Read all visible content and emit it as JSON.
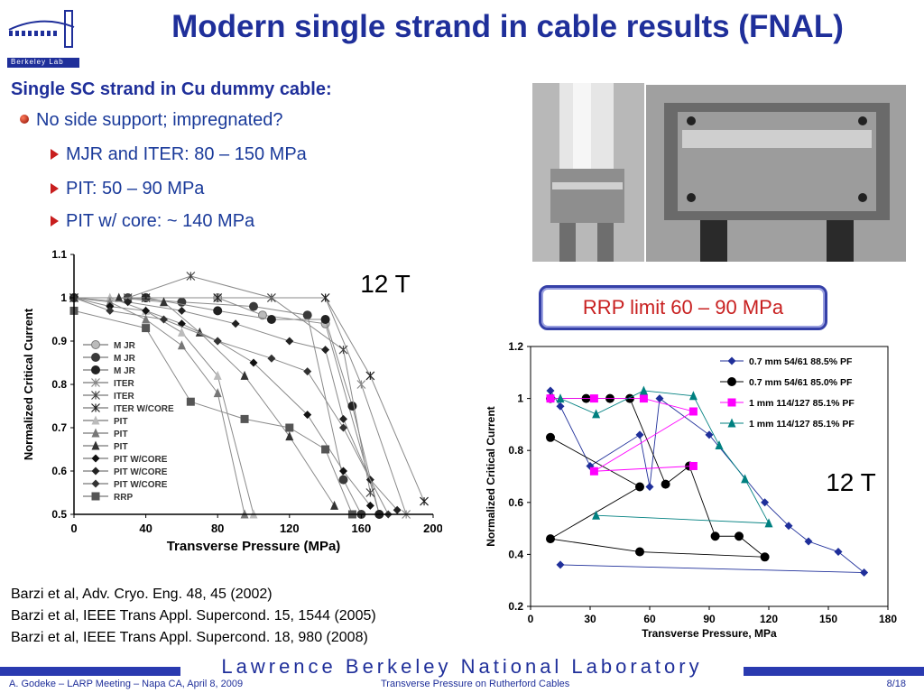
{
  "logo": {
    "label": "Berkeley Lab"
  },
  "title": "Modern single strand in cable results (FNAL)",
  "subtitle": "Single SC strand in Cu dummy cable:",
  "bullets": [
    "No side support; impregnated?",
    "MJR and ITER: 80 – 150 MPa",
    "PIT: 50 – 90 MPa",
    "PIT w/ core: ~ 140 MPa"
  ],
  "callout": "RRP limit 60 – 90 MPa",
  "references": [
    "Barzi et al, Adv. Cryo. Eng. 48, 45 (2002)",
    "Barzi et al, IEEE Trans Appl. Supercond. 15, 1544 (2005)",
    "Barzi et al, IEEE Trans Appl. Supercond. 18, 980 (2008)"
  ],
  "banner": "Lawrence Berkeley National Laboratory",
  "footer": {
    "left": "A. Godeke – LARP Meeting – Napa CA, April 8, 2009",
    "center": "Transverse Pressure on Rutherford Cables",
    "right": "8/18"
  },
  "colors": {
    "title": "#1f2f9a",
    "accent_red": "#c81e1e",
    "banner_blue": "#2a3ab0"
  },
  "chart_data": [
    {
      "type": "line",
      "annotation": "12 T",
      "xlabel": "Transverse Pressure (MPa)",
      "ylabel": "Normalized Critical Current",
      "xlim": [
        0,
        200
      ],
      "ylim": [
        0.5,
        1.1
      ],
      "xticks": [
        "0",
        "40",
        "80",
        "120",
        "160",
        "200"
      ],
      "yticks": [
        "0.5",
        "0.6",
        "0.7",
        "0.8",
        "0.9",
        "1",
        "1.1"
      ],
      "legend_position": "left",
      "series": [
        {
          "name": "M JR",
          "marker": "circle-open",
          "points": [
            [
              0,
              1
            ],
            [
              40,
              1
            ],
            [
              80,
              1
            ],
            [
              105,
              0.96
            ],
            [
              140,
              0.94
            ],
            [
              170,
              0.5
            ]
          ]
        },
        {
          "name": "M JR",
          "marker": "circle",
          "points": [
            [
              0,
              1
            ],
            [
              30,
              1
            ],
            [
              60,
              0.99
            ],
            [
              100,
              0.98
            ],
            [
              130,
              0.96
            ],
            [
              150,
              0.58
            ],
            [
              160,
              0.5
            ]
          ]
        },
        {
          "name": "M JR",
          "marker": "circle",
          "points": [
            [
              0,
              1
            ],
            [
              40,
              1
            ],
            [
              80,
              0.97
            ],
            [
              110,
              0.95
            ],
            [
              140,
              0.95
            ],
            [
              155,
              0.75
            ],
            [
              170,
              0.5
            ]
          ]
        },
        {
          "name": "ITER",
          "marker": "x",
          "points": [
            [
              0,
              1
            ],
            [
              40,
              1
            ],
            [
              80,
              1
            ],
            [
              110,
              1
            ],
            [
              140,
              1
            ],
            [
              160,
              0.8
            ],
            [
              185,
              0.5
            ]
          ]
        },
        {
          "name": "ITER",
          "marker": "x",
          "points": [
            [
              0,
              1
            ],
            [
              30,
              1
            ],
            [
              65,
              1.05
            ],
            [
              110,
              1
            ],
            [
              150,
              0.88
            ],
            [
              165,
              0.55
            ]
          ]
        },
        {
          "name": "ITER W/CORE",
          "marker": "x",
          "points": [
            [
              0,
              1
            ],
            [
              40,
              1
            ],
            [
              80,
              1
            ],
            [
              140,
              1
            ],
            [
              165,
              0.82
            ],
            [
              195,
              0.53
            ]
          ]
        },
        {
          "name": "PIT",
          "marker": "triangle-open",
          "points": [
            [
              0,
              1
            ],
            [
              20,
              1
            ],
            [
              40,
              0.97
            ],
            [
              60,
              0.92
            ],
            [
              80,
              0.82
            ],
            [
              100,
              0.5
            ]
          ]
        },
        {
          "name": "PIT",
          "marker": "triangle",
          "points": [
            [
              0,
              1
            ],
            [
              20,
              0.99
            ],
            [
              40,
              0.95
            ],
            [
              60,
              0.89
            ],
            [
              80,
              0.78
            ],
            [
              95,
              0.5
            ]
          ]
        },
        {
          "name": "PIT",
          "marker": "triangle",
          "points": [
            [
              0,
              1
            ],
            [
              25,
              1
            ],
            [
              50,
              0.99
            ],
            [
              70,
              0.92
            ],
            [
              95,
              0.82
            ],
            [
              120,
              0.68
            ],
            [
              145,
              0.52
            ]
          ]
        },
        {
          "name": "PIT W/CORE",
          "marker": "diamond",
          "points": [
            [
              0,
              1
            ],
            [
              20,
              0.98
            ],
            [
              40,
              0.97
            ],
            [
              60,
              0.94
            ],
            [
              80,
              0.9
            ],
            [
              100,
              0.85
            ],
            [
              130,
              0.73
            ],
            [
              150,
              0.6
            ],
            [
              165,
              0.52
            ]
          ]
        },
        {
          "name": "PIT W/CORE",
          "marker": "diamond",
          "points": [
            [
              0,
              1
            ],
            [
              30,
              0.99
            ],
            [
              60,
              0.97
            ],
            [
              90,
              0.94
            ],
            [
              120,
              0.9
            ],
            [
              140,
              0.88
            ],
            [
              150,
              0.72
            ],
            [
              165,
              0.58
            ],
            [
              180,
              0.51
            ]
          ]
        },
        {
          "name": "PIT W/CORE",
          "marker": "diamond",
          "points": [
            [
              0,
              1
            ],
            [
              20,
              0.97
            ],
            [
              50,
              0.95
            ],
            [
              80,
              0.9
            ],
            [
              110,
              0.86
            ],
            [
              130,
              0.83
            ],
            [
              150,
              0.7
            ],
            [
              175,
              0.5
            ]
          ]
        },
        {
          "name": "RRP",
          "marker": "square",
          "points": [
            [
              0,
              0.97
            ],
            [
              40,
              0.93
            ],
            [
              65,
              0.76
            ],
            [
              95,
              0.72
            ],
            [
              120,
              0.7
            ],
            [
              140,
              0.65
            ],
            [
              155,
              0.5
            ]
          ]
        }
      ]
    },
    {
      "type": "line",
      "annotation": "12 T",
      "xlabel": "Transverse Pressure, MPa",
      "ylabel": "Normalized Critical Current",
      "xlim": [
        0,
        180
      ],
      "ylim": [
        0.2,
        1.2
      ],
      "xticks": [
        "0",
        "30",
        "60",
        "90",
        "120",
        "150",
        "180"
      ],
      "yticks": [
        "0.2",
        "0.4",
        "0.6",
        "0.8",
        "1",
        "1.2"
      ],
      "legend_position": "top-right",
      "series": [
        {
          "name": "0.7 mm 54/61 88.5% PF",
          "color": "#1f2f9a",
          "marker": "diamond",
          "points": [
            [
              10,
              1.03
            ],
            [
              15,
              0.97
            ],
            [
              30,
              0.74
            ],
            [
              55,
              0.86
            ],
            [
              60,
              0.66
            ],
            [
              65,
              1.0
            ],
            [
              90,
              0.86
            ],
            [
              118,
              0.6
            ],
            [
              130,
              0.51
            ],
            [
              140,
              0.45
            ],
            [
              155,
              0.41
            ],
            [
              168,
              0.33
            ],
            [
              15,
              0.36
            ]
          ]
        },
        {
          "name": "0.7 mm 54/61 85.0% PF",
          "color": "#000000",
          "marker": "circle",
          "points": [
            [
              10,
              1.0
            ],
            [
              28,
              1.0
            ],
            [
              40,
              1.0
            ],
            [
              50,
              1.0
            ],
            [
              68,
              0.67
            ],
            [
              80,
              0.74
            ],
            [
              93,
              0.47
            ],
            [
              105,
              0.47
            ],
            [
              118,
              0.39
            ],
            [
              55,
              0.41
            ],
            [
              10,
              0.46
            ],
            [
              55,
              0.66
            ],
            [
              10,
              0.85
            ]
          ]
        },
        {
          "name": "1 mm 114/127 85.1% PF",
          "color": "#ff00ff",
          "marker": "square",
          "points": [
            [
              10,
              1.0
            ],
            [
              32,
              1.0
            ],
            [
              57,
              1.0
            ],
            [
              82,
              0.95
            ],
            [
              32,
              0.72
            ],
            [
              82,
              0.74
            ]
          ]
        },
        {
          "name": "1 mm 114/127 85.1% PF",
          "color": "#008080",
          "marker": "triangle",
          "points": [
            [
              15,
              1.0
            ],
            [
              33,
              0.94
            ],
            [
              57,
              1.03
            ],
            [
              82,
              1.01
            ],
            [
              95,
              0.82
            ],
            [
              108,
              0.69
            ],
            [
              120,
              0.52
            ],
            [
              33,
              0.55
            ]
          ]
        }
      ]
    }
  ]
}
